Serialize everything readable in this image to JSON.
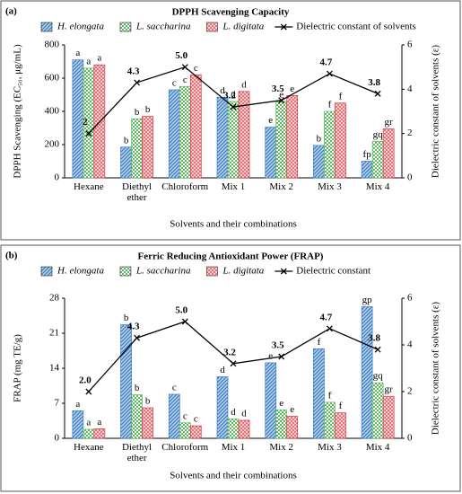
{
  "chart_data": [
    {
      "type": "bar",
      "panel_label": "(a)",
      "title": "DPPH Scavenging Capacity",
      "xlabel": "Solvents and their combinations",
      "ylabel": "DPPH Scavenging (EC₅₀, μg/mL)",
      "y2label": "Dielectric constant of solvents (ε)",
      "categories": [
        "Hexane",
        "Diethyl ether",
        "Chloroform",
        "Mix 1",
        "Mix 2",
        "Mix 3",
        "Mix 4"
      ],
      "ylim": [
        0,
        800
      ],
      "yticks": [
        0,
        200,
        400,
        600,
        800
      ],
      "y2lim": [
        0,
        6
      ],
      "y2ticks": [
        0,
        2,
        4,
        6
      ],
      "series": [
        {
          "name": "H. elongata",
          "color": "#3b7dc4",
          "pattern": "stripes",
          "values": [
            710,
            185,
            530,
            485,
            305,
            195,
            100
          ],
          "annotations": [
            "a",
            "b",
            "c",
            "d",
            "e",
            "b",
            "fp"
          ]
        },
        {
          "name": "L. saccharina",
          "color": "#5cb85c",
          "pattern": "checks",
          "values": [
            660,
            355,
            550,
            460,
            460,
            400,
            220
          ],
          "annotations": [
            "a",
            "b",
            "c",
            "d",
            "e",
            "f",
            "gq"
          ]
        },
        {
          "name": "L. digitata",
          "color": "#d9363e",
          "pattern": "dots",
          "values": [
            680,
            370,
            620,
            520,
            495,
            450,
            295
          ],
          "annotations": [
            "a",
            "b",
            "c",
            "d",
            "e",
            "f",
            "gr"
          ]
        },
        {
          "name": "Dielectric constant of solvents",
          "color": "#000000",
          "type": "line",
          "axis": "y2",
          "values": [
            2,
            4.3,
            5.0,
            3.2,
            3.5,
            4.7,
            3.8
          ],
          "value_labels": [
            "2",
            "4.3",
            "5.0",
            "3.2",
            "3.5",
            "4.7",
            "3.8"
          ]
        }
      ]
    },
    {
      "type": "bar",
      "panel_label": "(b)",
      "title": "Ferric Reducing Antioxidant Power (FRAP)",
      "xlabel": "Solvents and their combinations",
      "ylabel": "FRAP (mg TE/g)",
      "y2label": "Dielectric constant of solvents (ε)",
      "categories": [
        "Hexane",
        "Diethyl ether",
        "Chloroform",
        "Mix 1",
        "Mix 2",
        "Mix 3",
        "Mix 4"
      ],
      "ylim": [
        0,
        28
      ],
      "yticks": [
        0,
        7,
        14,
        21,
        28
      ],
      "y2lim": [
        0,
        6
      ],
      "y2ticks": [
        0,
        2,
        4,
        6
      ],
      "series": [
        {
          "name": "H. elongata",
          "color": "#3b7dc4",
          "pattern": "stripes",
          "values": [
            5.5,
            22.7,
            8.8,
            12.3,
            15.1,
            17.9,
            26.3
          ],
          "annotations": [
            "a",
            "b",
            "c",
            "d",
            "e",
            "f",
            "gp"
          ]
        },
        {
          "name": "L. saccharina",
          "color": "#5cb85c",
          "pattern": "checks",
          "values": [
            1.8,
            8.7,
            3.1,
            3.9,
            5.7,
            7.2,
            11.1
          ],
          "annotations": [
            "a",
            "b",
            "c",
            "d",
            "e",
            "f",
            "gq"
          ]
        },
        {
          "name": "L. digitata",
          "color": "#d9363e",
          "pattern": "dots",
          "values": [
            1.9,
            6.1,
            2.5,
            3.6,
            4.4,
            5.1,
            8.4
          ],
          "annotations": [
            "a",
            "b",
            "c",
            "d",
            "e",
            "f",
            "gr"
          ]
        },
        {
          "name": "Dielectric constant",
          "color": "#000000",
          "type": "line",
          "axis": "y2",
          "values": [
            2.0,
            4.3,
            5.0,
            3.2,
            3.5,
            4.7,
            3.8
          ],
          "value_labels": [
            "2.0",
            "4.3",
            "5.0",
            "3.2",
            "3.5",
            "4.7",
            "3.8"
          ]
        }
      ]
    }
  ]
}
